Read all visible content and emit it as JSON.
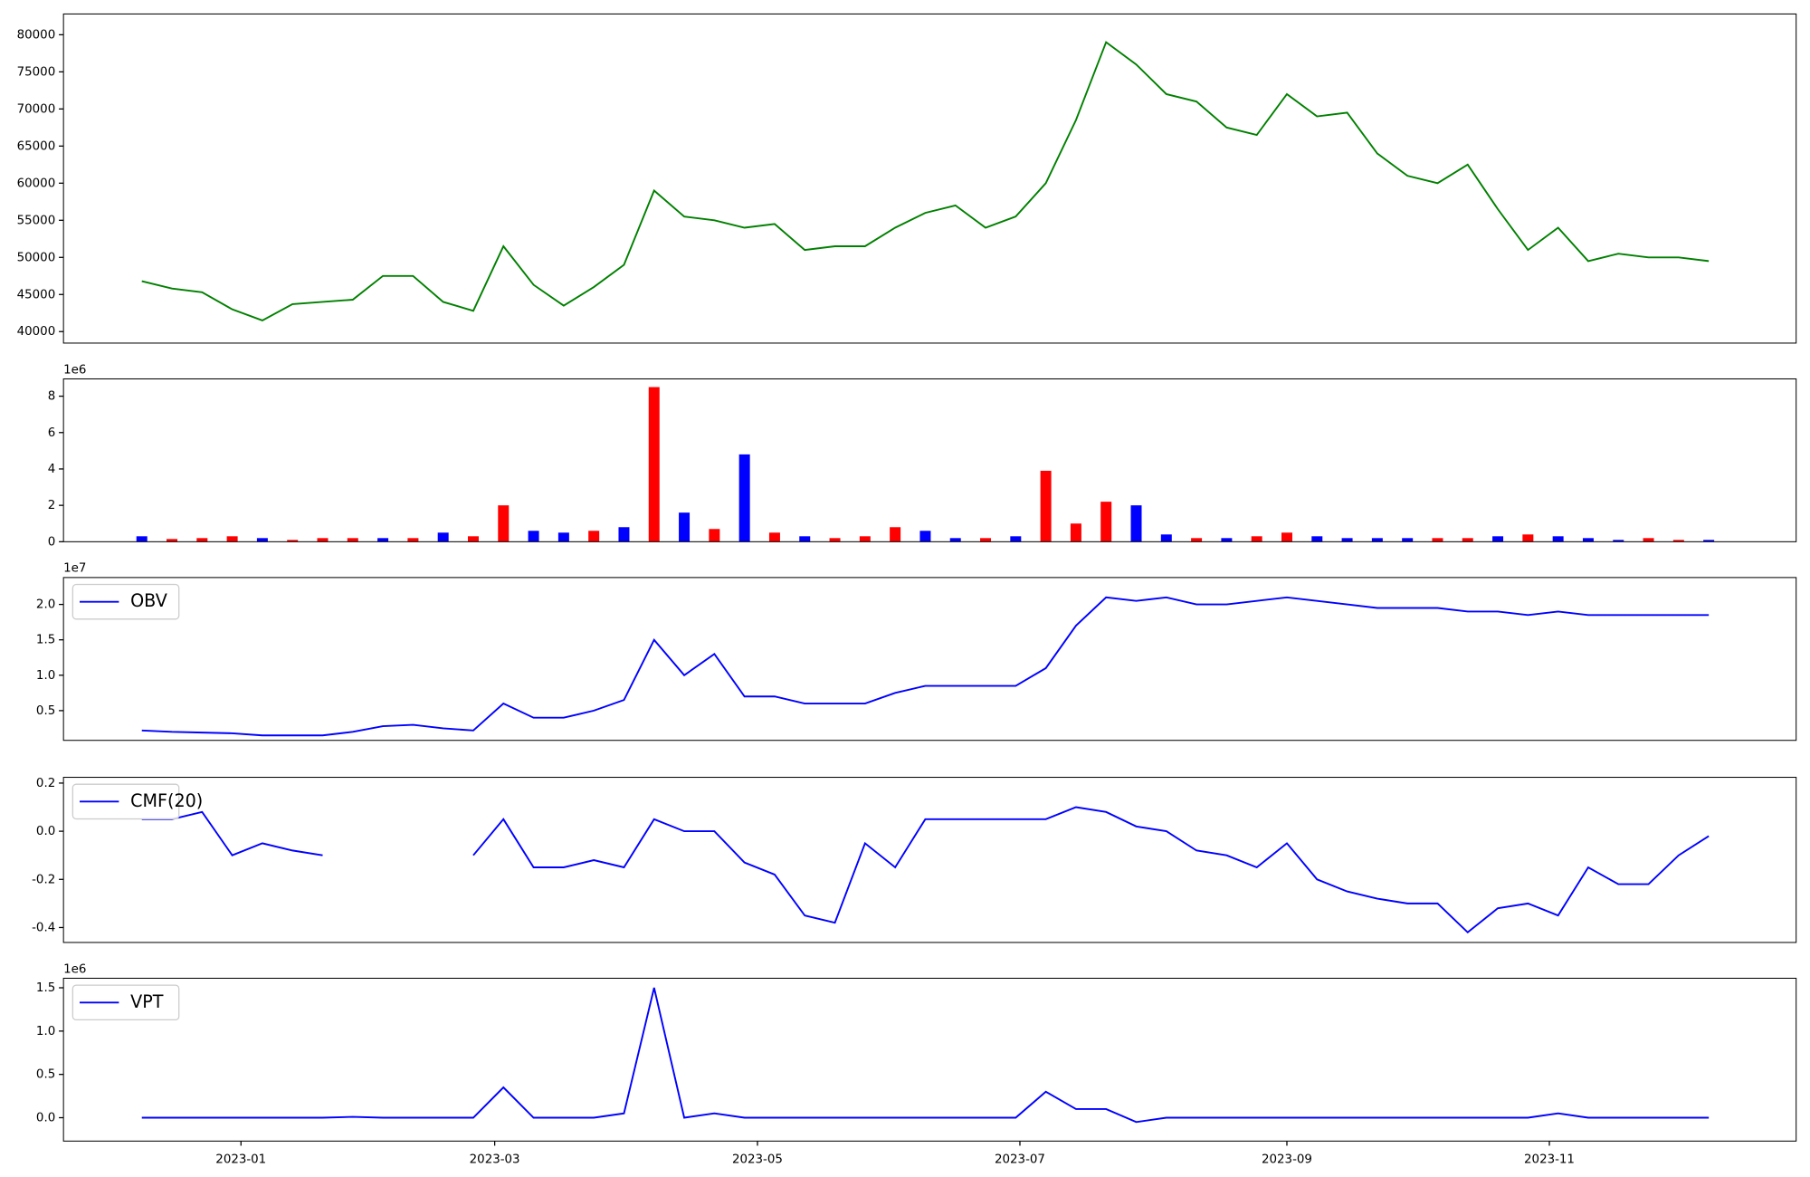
{
  "chart_data": [
    {
      "type": "line",
      "xlim": [
        -2.6,
        54.9
      ],
      "ylim": [
        38450,
        82800
      ],
      "yticks": [
        40000,
        45000,
        50000,
        55000,
        60000,
        65000,
        70000,
        75000,
        80000
      ],
      "series": [
        {
          "color": "#008000",
          "values": [
            46800,
            45800,
            45300,
            43000,
            41500,
            43700,
            44000,
            44300,
            47500,
            47500,
            44000,
            42800,
            51500,
            46300,
            43500,
            46000,
            49000,
            59000,
            55500,
            55000,
            54000,
            54500,
            51000,
            51500,
            51500,
            54000,
            56000,
            57000,
            54000,
            55500,
            60000,
            68500,
            79000,
            76000,
            72000,
            71000,
            67500,
            66500,
            72000,
            69000,
            69500,
            64000,
            61000,
            60000,
            62500,
            56500,
            51000,
            54000,
            49500,
            50500,
            50000,
            50000,
            49500
          ]
        }
      ]
    },
    {
      "type": "bar",
      "xlim": [
        -2.6,
        54.9
      ],
      "ylim": [
        0,
        8.95
      ],
      "yticks": [
        0,
        2,
        4,
        6,
        8
      ],
      "offset_label": "1e6",
      "values": [
        0.3,
        0.15,
        0.2,
        0.3,
        0.2,
        0.1,
        0.2,
        0.2,
        0.2,
        0.2,
        0.5,
        0.3,
        2.0,
        0.6,
        0.5,
        0.6,
        0.8,
        8.5,
        1.6,
        0.7,
        4.8,
        0.5,
        0.3,
        0.2,
        0.3,
        0.8,
        0.6,
        0.2,
        0.2,
        0.3,
        3.9,
        1.0,
        2.2,
        2.0,
        0.4,
        0.2,
        0.2,
        0.3,
        0.5,
        0.3,
        0.2,
        0.2,
        0.2,
        0.2,
        0.2,
        0.3,
        0.4,
        0.3,
        0.2,
        0.1,
        0.2,
        0.1,
        0.1
      ],
      "colors": [
        "blue",
        "red",
        "red",
        "red",
        "blue",
        "red",
        "red",
        "red",
        "blue",
        "red",
        "blue",
        "red",
        "red",
        "blue",
        "blue",
        "red",
        "blue",
        "red",
        "blue",
        "red",
        "blue",
        "red",
        "blue",
        "red",
        "red",
        "red",
        "blue",
        "blue",
        "red",
        "blue",
        "red",
        "red",
        "red",
        "blue",
        "blue",
        "red",
        "blue",
        "red",
        "red",
        "blue",
        "blue",
        "blue",
        "blue",
        "red",
        "red",
        "blue",
        "red",
        "blue",
        "blue",
        "blue",
        "red",
        "red",
        "blue"
      ]
    },
    {
      "type": "line",
      "xlim": [
        -2.6,
        54.9
      ],
      "ylim": [
        0.08,
        2.38
      ],
      "offset_label": "1e7",
      "yticks": [
        0.5,
        {
          "value": 1,
          "label": "1.0"
        },
        1.5,
        {
          "value": 2,
          "label": "2.0"
        }
      ],
      "series": [
        {
          "name": "OBV",
          "color": "#0000ff",
          "values": [
            0.22,
            0.2,
            0.19,
            0.18,
            0.15,
            0.15,
            0.15,
            0.2,
            0.28,
            0.3,
            0.25,
            0.22,
            0.6,
            0.4,
            0.4,
            0.5,
            0.65,
            1.5,
            1.0,
            1.3,
            0.7,
            0.7,
            0.6,
            0.6,
            0.6,
            0.75,
            0.85,
            0.85,
            0.85,
            0.85,
            1.1,
            1.7,
            2.1,
            2.05,
            2.1,
            2.0,
            2.0,
            2.05,
            2.1,
            2.05,
            2.0,
            1.95,
            1.95,
            1.95,
            1.9,
            1.9,
            1.85,
            1.9,
            1.85,
            1.85,
            1.85,
            1.85,
            1.85
          ]
        }
      ]
    },
    {
      "type": "line",
      "xlim": [
        -2.6,
        54.9
      ],
      "ylim": [
        -0.462,
        0.224
      ],
      "yticks": [
        -0.4,
        -0.2,
        {
          "value": 0,
          "label": "0.0"
        },
        0.2
      ],
      "series": [
        {
          "name": "CMF(20)",
          "color": "#0000ff",
          "values": [
            0.05,
            0.05,
            0.08,
            -0.1,
            -0.05,
            -0.08,
            -0.1,
            null,
            null,
            null,
            null,
            -0.1,
            0.05,
            -0.15,
            -0.15,
            -0.12,
            -0.15,
            0.05,
            0.0,
            0.0,
            -0.13,
            -0.18,
            -0.35,
            -0.38,
            -0.05,
            -0.15,
            0.05,
            0.05,
            0.05,
            0.05,
            0.05,
            0.1,
            0.08,
            0.02,
            0.0,
            -0.08,
            -0.1,
            -0.15,
            -0.05,
            -0.2,
            -0.25,
            -0.28,
            -0.3,
            -0.3,
            -0.42,
            -0.32,
            -0.3,
            -0.35,
            -0.15,
            -0.22,
            -0.22,
            -0.1,
            -0.02
          ]
        }
      ]
    },
    {
      "type": "line",
      "xlim": [
        -2.6,
        54.9
      ],
      "ylim": [
        -0.27,
        1.61
      ],
      "offset_label": "1e6",
      "yticks": [
        {
          "value": 0,
          "label": "0.0"
        },
        0.5,
        {
          "value": 1,
          "label": "1.0"
        },
        1.5
      ],
      "xticks": [
        {
          "value": 3.29,
          "label": "2023-01"
        },
        {
          "value": 11.71,
          "label": "2023-03"
        },
        {
          "value": 20.43,
          "label": "2023-05"
        },
        {
          "value": 29.14,
          "label": "2023-07"
        },
        {
          "value": 38.0,
          "label": "2023-09"
        },
        {
          "value": 46.71,
          "label": "2023-11"
        }
      ],
      "series": [
        {
          "name": "VPT",
          "color": "#0000ff",
          "values": [
            0,
            0,
            0,
            0,
            0,
            0,
            0,
            0.01,
            0,
            0,
            0,
            0,
            0.35,
            0,
            0,
            0,
            0.05,
            1.5,
            0,
            0.05,
            0,
            0,
            0,
            0,
            0,
            0,
            0,
            0,
            0,
            0,
            0.3,
            0.1,
            0.1,
            -0.05,
            0,
            0,
            0,
            0,
            0,
            0,
            0,
            0,
            0,
            0,
            0,
            0,
            0,
            0.05,
            0,
            0,
            0,
            0,
            0
          ]
        }
      ]
    }
  ]
}
